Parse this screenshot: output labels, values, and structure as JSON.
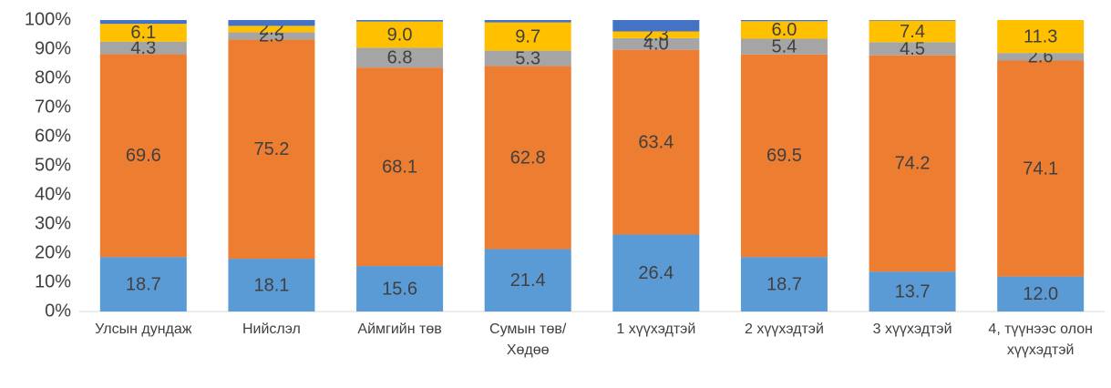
{
  "chart_data": {
    "type": "stacked_bar_100",
    "categories": [
      "Улсын дундаж",
      "Нийслэл",
      "Аймгийн төв",
      "Сумын төв/ Хөдөө",
      "1 хүүхэдтэй",
      "2 хүүхэдтэй",
      "3 хүүхэдтэй",
      "4, түүнээс олон хүүхэдтэй"
    ],
    "series": [
      {
        "color": "#5b9bd5",
        "values": [
          18.7,
          18.1,
          15.6,
          21.4,
          26.4,
          18.7,
          13.7,
          12.0
        ],
        "value_labels": [
          "18.7",
          "18.1",
          "15.6",
          "21.4",
          "26.4",
          "18.7",
          "13.7",
          "12.0"
        ]
      },
      {
        "color": "#ed7d31",
        "values": [
          69.6,
          75.2,
          68.1,
          62.8,
          63.4,
          69.5,
          74.2,
          74.1
        ],
        "value_labels": [
          "69.6",
          "75.2",
          "68.1",
          "62.8",
          "63.4",
          "69.5",
          "74.2",
          "74.1"
        ]
      },
      {
        "color": "#a5a5a5",
        "values": [
          4.3,
          2.5,
          6.8,
          5.3,
          4.0,
          5.4,
          4.5,
          2.6
        ],
        "value_labels": [
          "4.3",
          "2.5",
          "6.8",
          "5.3",
          "4.0",
          "5.4",
          "4.5",
          "2.6"
        ]
      },
      {
        "color": "#ffc000",
        "values": [
          6.1,
          2.2,
          9.0,
          9.7,
          2.3,
          6.0,
          7.4,
          11.3
        ],
        "value_labels": [
          "6.1",
          "2.2",
          "9.0",
          "9.7",
          "2.3",
          "6.0",
          "7.4",
          "11.3"
        ]
      },
      {
        "color": "#4472c4",
        "values": [
          1.3,
          2.0,
          0.5,
          0.8,
          3.9,
          0.4,
          0.2,
          0.0
        ]
      }
    ],
    "ylim": [
      0,
      100
    ],
    "yticks": [
      {
        "value": 0,
        "label": "0%"
      },
      {
        "value": 10,
        "label": "10%"
      },
      {
        "value": 20,
        "label": "20%"
      },
      {
        "value": 30,
        "label": "30%"
      },
      {
        "value": 40,
        "label": "40%"
      },
      {
        "value": 50,
        "label": "50%"
      },
      {
        "value": 60,
        "label": "60%"
      },
      {
        "value": 70,
        "label": "70%"
      },
      {
        "value": 80,
        "label": "80%"
      },
      {
        "value": 90,
        "label": "90%"
      },
      {
        "value": 100,
        "label": "100%"
      }
    ],
    "grid": false
  }
}
